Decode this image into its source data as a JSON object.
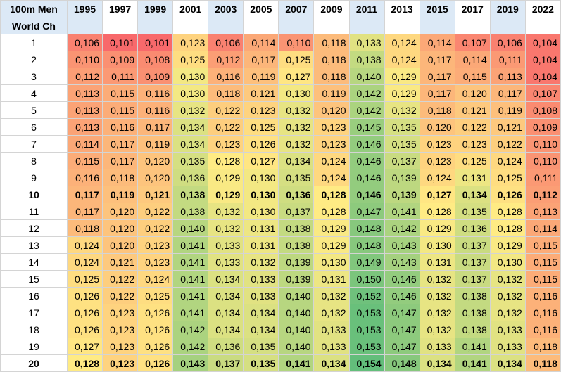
{
  "table": {
    "header": {
      "title_lines": [
        "100m Men",
        "World Ch"
      ],
      "years": [
        "1995",
        "1997",
        "1999",
        "2001",
        "2003",
        "2005",
        "2007",
        "2009",
        "2011",
        "2013",
        "2015",
        "2017",
        "2019",
        "2022"
      ]
    },
    "rows": [
      {
        "place": "1",
        "values": [
          "0,106",
          "0,101",
          "0,101",
          "0,123",
          "0,106",
          "0,114",
          "0,110",
          "0,118",
          "0,133",
          "0,124",
          "0,114",
          "0,107",
          "0,106",
          "0,104"
        ]
      },
      {
        "place": "2",
        "values": [
          "0,110",
          "0,109",
          "0,108",
          "0,125",
          "0,112",
          "0,117",
          "0,125",
          "0,118",
          "0,138",
          "0,124",
          "0,117",
          "0,114",
          "0,111",
          "0,104"
        ]
      },
      {
        "place": "3",
        "values": [
          "0,112",
          "0,111",
          "0,109",
          "0,130",
          "0,116",
          "0,119",
          "0,127",
          "0,118",
          "0,140",
          "0,129",
          "0,117",
          "0,115",
          "0,113",
          "0,104"
        ]
      },
      {
        "place": "4",
        "values": [
          "0,113",
          "0,115",
          "0,116",
          "0,130",
          "0,118",
          "0,121",
          "0,130",
          "0,119",
          "0,142",
          "0,129",
          "0,117",
          "0,120",
          "0,117",
          "0,107"
        ]
      },
      {
        "place": "5",
        "values": [
          "0,113",
          "0,115",
          "0,116",
          "0,132",
          "0,122",
          "0,123",
          "0,132",
          "0,120",
          "0,142",
          "0,132",
          "0,118",
          "0,121",
          "0,119",
          "0,108"
        ]
      },
      {
        "place": "6",
        "values": [
          "0,113",
          "0,116",
          "0,117",
          "0,134",
          "0,122",
          "0,125",
          "0,132",
          "0,123",
          "0,145",
          "0,135",
          "0,120",
          "0,122",
          "0,121",
          "0,109"
        ]
      },
      {
        "place": "7",
        "values": [
          "0,114",
          "0,117",
          "0,119",
          "0,134",
          "0,123",
          "0,126",
          "0,132",
          "0,123",
          "0,146",
          "0,135",
          "0,123",
          "0,123",
          "0,122",
          "0,110"
        ]
      },
      {
        "place": "8",
        "values": [
          "0,115",
          "0,117",
          "0,120",
          "0,135",
          "0,128",
          "0,127",
          "0,134",
          "0,124",
          "0,146",
          "0,137",
          "0,123",
          "0,125",
          "0,124",
          "0,110"
        ]
      },
      {
        "place": "9",
        "values": [
          "0,116",
          "0,118",
          "0,120",
          "0,136",
          "0,129",
          "0,130",
          "0,135",
          "0,124",
          "0,146",
          "0,139",
          "0,124",
          "0,131",
          "0,125",
          "0,111"
        ]
      },
      {
        "place": "10",
        "values": [
          "0,117",
          "0,119",
          "0,121",
          "0,138",
          "0,129",
          "0,130",
          "0,136",
          "0,128",
          "0,146",
          "0,139",
          "0,127",
          "0,134",
          "0,126",
          "0,112"
        ]
      },
      {
        "place": "11",
        "values": [
          "0,117",
          "0,120",
          "0,122",
          "0,138",
          "0,132",
          "0,130",
          "0,137",
          "0,128",
          "0,147",
          "0,141",
          "0,128",
          "0,135",
          "0,128",
          "0,113"
        ]
      },
      {
        "place": "12",
        "values": [
          "0,118",
          "0,120",
          "0,122",
          "0,140",
          "0,132",
          "0,131",
          "0,138",
          "0,129",
          "0,148",
          "0,142",
          "0,129",
          "0,136",
          "0,128",
          "0,114"
        ]
      },
      {
        "place": "13",
        "values": [
          "0,124",
          "0,120",
          "0,123",
          "0,141",
          "0,133",
          "0,131",
          "0,138",
          "0,129",
          "0,148",
          "0,143",
          "0,130",
          "0,137",
          "0,129",
          "0,115"
        ]
      },
      {
        "place": "14",
        "values": [
          "0,124",
          "0,121",
          "0,123",
          "0,141",
          "0,133",
          "0,132",
          "0,139",
          "0,130",
          "0,149",
          "0,143",
          "0,131",
          "0,137",
          "0,130",
          "0,115"
        ]
      },
      {
        "place": "15",
        "values": [
          "0,125",
          "0,122",
          "0,124",
          "0,141",
          "0,134",
          "0,133",
          "0,139",
          "0,131",
          "0,150",
          "0,146",
          "0,132",
          "0,137",
          "0,132",
          "0,115"
        ]
      },
      {
        "place": "16",
        "values": [
          "0,126",
          "0,122",
          "0,125",
          "0,141",
          "0,134",
          "0,133",
          "0,140",
          "0,132",
          "0,152",
          "0,146",
          "0,132",
          "0,138",
          "0,132",
          "0,116"
        ]
      },
      {
        "place": "17",
        "values": [
          "0,126",
          "0,123",
          "0,126",
          "0,141",
          "0,134",
          "0,134",
          "0,140",
          "0,132",
          "0,153",
          "0,147",
          "0,132",
          "0,138",
          "0,132",
          "0,116"
        ]
      },
      {
        "place": "18",
        "values": [
          "0,126",
          "0,123",
          "0,126",
          "0,142",
          "0,134",
          "0,134",
          "0,140",
          "0,133",
          "0,153",
          "0,147",
          "0,132",
          "0,138",
          "0,133",
          "0,116"
        ]
      },
      {
        "place": "19",
        "values": [
          "0,127",
          "0,123",
          "0,126",
          "0,142",
          "0,136",
          "0,135",
          "0,140",
          "0,133",
          "0,153",
          "0,147",
          "0,133",
          "0,141",
          "0,133",
          "0,118"
        ]
      },
      {
        "place": "20",
        "values": [
          "0,128",
          "0,123",
          "0,126",
          "0,143",
          "0,137",
          "0,135",
          "0,141",
          "0,134",
          "0,154",
          "0,148",
          "0,134",
          "0,141",
          "0,134",
          "0,118"
        ]
      }
    ]
  }
}
